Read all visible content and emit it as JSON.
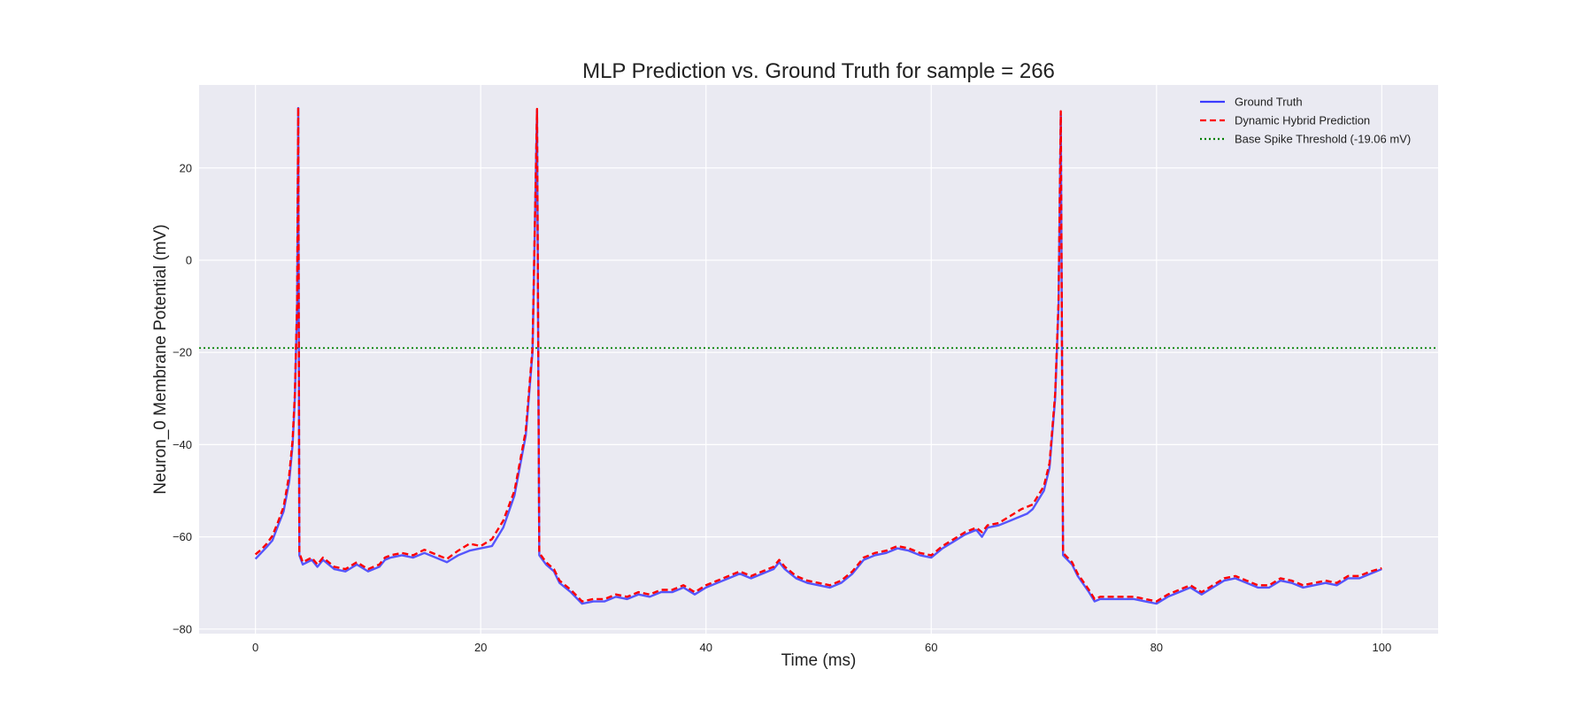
{
  "chart_data": {
    "type": "line",
    "title": "MLP Prediction vs. Ground Truth for sample = 266",
    "xlabel": "Time (ms)",
    "ylabel": "Neuron_0 Membrane Potential (mV)",
    "xlim": [
      -5,
      105
    ],
    "ylim": [
      -81,
      38
    ],
    "xticks": [
      0,
      20,
      40,
      60,
      80,
      100
    ],
    "yticks": [
      -80,
      -60,
      -40,
      -20,
      0,
      20
    ],
    "grid": true,
    "legend_position": "top-right",
    "threshold": {
      "name": "Base Spike Threshold (-19.06 mV)",
      "value": -19.06,
      "color": "#008000",
      "style": "dotted"
    },
    "series": [
      {
        "name": "Ground Truth",
        "color": "#3b3bff",
        "style": "solid",
        "points": [
          [
            0,
            -64.8
          ],
          [
            0.5,
            -63.5
          ],
          [
            1,
            -62.2
          ],
          [
            1.5,
            -60.8
          ],
          [
            2,
            -57.6
          ],
          [
            2.5,
            -54.5
          ],
          [
            3,
            -48
          ],
          [
            3.3,
            -40
          ],
          [
            3.5,
            -30
          ],
          [
            3.7,
            -10
          ],
          [
            3.8,
            33
          ],
          [
            3.9,
            -64
          ],
          [
            4.2,
            -66
          ],
          [
            5,
            -65
          ],
          [
            5.5,
            -66.5
          ],
          [
            6,
            -65
          ],
          [
            7,
            -67
          ],
          [
            8,
            -67.5
          ],
          [
            9,
            -66
          ],
          [
            10,
            -67.5
          ],
          [
            11,
            -66.5
          ],
          [
            11.5,
            -65
          ],
          [
            12,
            -64.5
          ],
          [
            13,
            -64
          ],
          [
            14,
            -64.5
          ],
          [
            15,
            -63.5
          ],
          [
            16,
            -64.5
          ],
          [
            17,
            -65.5
          ],
          [
            18,
            -64
          ],
          [
            19,
            -63
          ],
          [
            20,
            -62.5
          ],
          [
            21,
            -62
          ],
          [
            22,
            -58
          ],
          [
            23,
            -51
          ],
          [
            24,
            -38
          ],
          [
            24.6,
            -20
          ],
          [
            25.0,
            32.5
          ],
          [
            25.2,
            -64
          ],
          [
            25.8,
            -66
          ],
          [
            26.5,
            -67.5
          ],
          [
            27,
            -70
          ],
          [
            28,
            -72
          ],
          [
            29,
            -74.5
          ],
          [
            30,
            -74
          ],
          [
            31,
            -74
          ],
          [
            32,
            -73
          ],
          [
            33,
            -73.5
          ],
          [
            34,
            -72.5
          ],
          [
            35,
            -73
          ],
          [
            36,
            -72
          ],
          [
            37,
            -72
          ],
          [
            38,
            -71
          ],
          [
            39,
            -72.5
          ],
          [
            40,
            -71
          ],
          [
            41,
            -70
          ],
          [
            42,
            -69
          ],
          [
            43,
            -68
          ],
          [
            44,
            -69
          ],
          [
            45,
            -68
          ],
          [
            46,
            -67
          ],
          [
            46.5,
            -65.5
          ],
          [
            47,
            -67
          ],
          [
            48,
            -69
          ],
          [
            49,
            -70
          ],
          [
            50,
            -70.5
          ],
          [
            51,
            -71
          ],
          [
            52,
            -70
          ],
          [
            53,
            -68
          ],
          [
            54,
            -65
          ],
          [
            55,
            -64
          ],
          [
            56,
            -63.5
          ],
          [
            57,
            -62.5
          ],
          [
            58,
            -63
          ],
          [
            59,
            -64
          ],
          [
            60,
            -64.5
          ],
          [
            61,
            -62.5
          ],
          [
            62,
            -61
          ],
          [
            63,
            -59.5
          ],
          [
            64,
            -58.5
          ],
          [
            64.5,
            -60
          ],
          [
            65,
            -58
          ],
          [
            66,
            -57.5
          ],
          [
            67,
            -56.5
          ],
          [
            68,
            -55.5
          ],
          [
            68.5,
            -55
          ],
          [
            69,
            -54
          ],
          [
            70,
            -50
          ],
          [
            70.5,
            -45
          ],
          [
            71.0,
            -30
          ],
          [
            71.3,
            -10
          ],
          [
            71.5,
            31.5
          ],
          [
            71.7,
            -64
          ],
          [
            72.5,
            -66
          ],
          [
            73,
            -68.5
          ],
          [
            74,
            -72
          ],
          [
            74.5,
            -74
          ],
          [
            75,
            -73.5
          ],
          [
            76,
            -73.5
          ],
          [
            77,
            -73.5
          ],
          [
            78,
            -73.5
          ],
          [
            79,
            -74
          ],
          [
            80,
            -74.5
          ],
          [
            81,
            -73
          ],
          [
            82,
            -72
          ],
          [
            83,
            -71
          ],
          [
            84,
            -72.5
          ],
          [
            85,
            -71
          ],
          [
            86,
            -69.5
          ],
          [
            87,
            -69
          ],
          [
            88,
            -70
          ],
          [
            89,
            -71
          ],
          [
            90,
            -71
          ],
          [
            91,
            -69.5
          ],
          [
            92,
            -70
          ],
          [
            93,
            -71
          ],
          [
            94,
            -70.5
          ],
          [
            95,
            -70
          ],
          [
            96,
            -70.5
          ],
          [
            97,
            -69
          ],
          [
            98,
            -69
          ],
          [
            99,
            -68
          ],
          [
            100,
            -67
          ]
        ]
      },
      {
        "name": "Dynamic Hybrid Prediction",
        "color": "#ff0000",
        "style": "dashed",
        "points": [
          [
            0,
            -63.8
          ],
          [
            0.5,
            -62.8
          ],
          [
            1,
            -61.5
          ],
          [
            1.5,
            -59.8
          ],
          [
            2,
            -56.8
          ],
          [
            2.5,
            -53.5
          ],
          [
            3,
            -46.5
          ],
          [
            3.3,
            -39
          ],
          [
            3.5,
            -29
          ],
          [
            3.7,
            -9
          ],
          [
            3.8,
            33.2
          ],
          [
            3.9,
            -63.5
          ],
          [
            4.2,
            -65.5
          ],
          [
            5,
            -64.5
          ],
          [
            5.5,
            -66
          ],
          [
            6,
            -64.5
          ],
          [
            7,
            -66.5
          ],
          [
            8,
            -67
          ],
          [
            9,
            -65.5
          ],
          [
            10,
            -67
          ],
          [
            11,
            -66
          ],
          [
            11.5,
            -64.5
          ],
          [
            12,
            -64
          ],
          [
            13,
            -63.5
          ],
          [
            14,
            -64
          ],
          [
            15,
            -62.8
          ],
          [
            16,
            -63.8
          ],
          [
            17,
            -64.8
          ],
          [
            18,
            -63
          ],
          [
            19,
            -61.5
          ],
          [
            20,
            -62
          ],
          [
            21,
            -60.5
          ],
          [
            22,
            -56.5
          ],
          [
            23,
            -50
          ],
          [
            24,
            -37
          ],
          [
            24.6,
            -19
          ],
          [
            25.0,
            32.8
          ],
          [
            25.2,
            -63.5
          ],
          [
            25.8,
            -65.5
          ],
          [
            26.5,
            -67
          ],
          [
            27,
            -69.5
          ],
          [
            28,
            -71.5
          ],
          [
            29,
            -74
          ],
          [
            30,
            -73.5
          ],
          [
            31,
            -73.5
          ],
          [
            32,
            -72.5
          ],
          [
            33,
            -73
          ],
          [
            34,
            -72
          ],
          [
            35,
            -72.5
          ],
          [
            36,
            -71.5
          ],
          [
            37,
            -71.5
          ],
          [
            38,
            -70.5
          ],
          [
            39,
            -72
          ],
          [
            40,
            -70.5
          ],
          [
            41,
            -69.5
          ],
          [
            42,
            -68.5
          ],
          [
            43,
            -67.5
          ],
          [
            44,
            -68.5
          ],
          [
            45,
            -67.5
          ],
          [
            46,
            -66.5
          ],
          [
            46.5,
            -65
          ],
          [
            47,
            -66.5
          ],
          [
            48,
            -68.5
          ],
          [
            49,
            -69.5
          ],
          [
            50,
            -70
          ],
          [
            51,
            -70.5
          ],
          [
            52,
            -69.5
          ],
          [
            53,
            -67.5
          ],
          [
            54,
            -64.5
          ],
          [
            55,
            -63.5
          ],
          [
            56,
            -63
          ],
          [
            57,
            -62
          ],
          [
            58,
            -62.5
          ],
          [
            59,
            -63.5
          ],
          [
            60,
            -64
          ],
          [
            61,
            -62
          ],
          [
            62,
            -60.5
          ],
          [
            63,
            -59
          ],
          [
            64,
            -58
          ],
          [
            64.5,
            -59
          ],
          [
            65,
            -57.5
          ],
          [
            66,
            -57
          ],
          [
            67,
            -55.5
          ],
          [
            68,
            -54
          ],
          [
            68.5,
            -53.5
          ],
          [
            69,
            -53
          ],
          [
            70,
            -49
          ],
          [
            70.5,
            -44
          ],
          [
            71.0,
            -29
          ],
          [
            71.3,
            -9
          ],
          [
            71.5,
            32.3
          ],
          [
            71.7,
            -63.5
          ],
          [
            72.5,
            -65.5
          ],
          [
            73,
            -68
          ],
          [
            74,
            -71.5
          ],
          [
            74.5,
            -73.5
          ],
          [
            75,
            -73
          ],
          [
            76,
            -73
          ],
          [
            77,
            -73
          ],
          [
            78,
            -73
          ],
          [
            79,
            -73.5
          ],
          [
            80,
            -74
          ],
          [
            81,
            -72.5
          ],
          [
            82,
            -71.5
          ],
          [
            83,
            -70.5
          ],
          [
            84,
            -72
          ],
          [
            85,
            -70.5
          ],
          [
            86,
            -69
          ],
          [
            87,
            -68.5
          ],
          [
            88,
            -69.5
          ],
          [
            89,
            -70.5
          ],
          [
            90,
            -70.5
          ],
          [
            91,
            -69
          ],
          [
            92,
            -69.5
          ],
          [
            93,
            -70.5
          ],
          [
            94,
            -70
          ],
          [
            95,
            -69.5
          ],
          [
            96,
            -70
          ],
          [
            97,
            -68.5
          ],
          [
            98,
            -68.5
          ],
          [
            99,
            -67.5
          ],
          [
            100,
            -66.8
          ]
        ]
      }
    ]
  }
}
